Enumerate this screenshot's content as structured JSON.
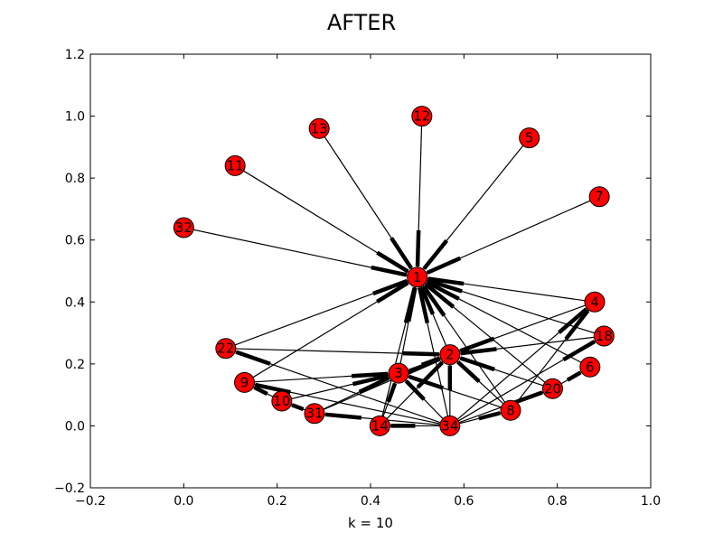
{
  "figure": {
    "title": "AFTER",
    "xlabel": "k = 10"
  },
  "chart_data": {
    "type": "scatter",
    "xlim": [
      -0.2,
      1.0
    ],
    "ylim": [
      -0.2,
      1.2
    ],
    "xticks": [
      -0.2,
      0.0,
      0.2,
      0.4,
      0.6,
      0.8,
      1.0
    ],
    "xtick_labels": [
      "−0.2",
      "0.0",
      "0.2",
      "0.4",
      "0.6",
      "0.8",
      "1.0"
    ],
    "yticks": [
      -0.2,
      0.0,
      0.2,
      0.4,
      0.6,
      0.8,
      1.0,
      1.2
    ],
    "ytick_labels": [
      "−0.2",
      "0.0",
      "0.2",
      "0.4",
      "0.6",
      "0.8",
      "1.0",
      "1.2"
    ],
    "grid": false,
    "node_color": "#ff0000",
    "edge_color": "#000000",
    "nodes": [
      {
        "id": "1",
        "x": 0.5,
        "y": 0.48
      },
      {
        "id": "2",
        "x": 0.57,
        "y": 0.23
      },
      {
        "id": "3",
        "x": 0.46,
        "y": 0.17
      },
      {
        "id": "4",
        "x": 0.88,
        "y": 0.4
      },
      {
        "id": "5",
        "x": 0.74,
        "y": 0.93
      },
      {
        "id": "6",
        "x": 0.87,
        "y": 0.19
      },
      {
        "id": "7",
        "x": 0.89,
        "y": 0.74
      },
      {
        "id": "8",
        "x": 0.7,
        "y": 0.05
      },
      {
        "id": "9",
        "x": 0.13,
        "y": 0.14
      },
      {
        "id": "10",
        "x": 0.21,
        "y": 0.08
      },
      {
        "id": "11",
        "x": 0.11,
        "y": 0.84
      },
      {
        "id": "12",
        "x": 0.51,
        "y": 1.0
      },
      {
        "id": "13",
        "x": 0.29,
        "y": 0.96
      },
      {
        "id": "14",
        "x": 0.42,
        "y": 0.0
      },
      {
        "id": "18",
        "x": 0.9,
        "y": 0.29
      },
      {
        "id": "20",
        "x": 0.79,
        "y": 0.12
      },
      {
        "id": "22",
        "x": 0.09,
        "y": 0.25
      },
      {
        "id": "31",
        "x": 0.28,
        "y": 0.04
      },
      {
        "id": "32",
        "x": 0.0,
        "y": 0.64
      },
      {
        "id": "34",
        "x": 0.57,
        "y": 0.0
      }
    ],
    "edges": [
      [
        "1",
        "32"
      ],
      [
        "1",
        "11"
      ],
      [
        "1",
        "13"
      ],
      [
        "1",
        "12"
      ],
      [
        "1",
        "5"
      ],
      [
        "1",
        "7"
      ],
      [
        "1",
        "4"
      ],
      [
        "1",
        "18"
      ],
      [
        "1",
        "6"
      ],
      [
        "1",
        "20"
      ],
      [
        "1",
        "8"
      ],
      [
        "1",
        "2"
      ],
      [
        "1",
        "3"
      ],
      [
        "1",
        "14"
      ],
      [
        "1",
        "22"
      ],
      [
        "1",
        "9"
      ],
      [
        "1",
        "34"
      ],
      [
        "2",
        "3"
      ],
      [
        "2",
        "4"
      ],
      [
        "2",
        "18"
      ],
      [
        "2",
        "8"
      ],
      [
        "2",
        "20"
      ],
      [
        "2",
        "14"
      ],
      [
        "2",
        "22"
      ],
      [
        "2",
        "34"
      ],
      [
        "2",
        "31"
      ],
      [
        "3",
        "9"
      ],
      [
        "3",
        "10"
      ],
      [
        "3",
        "14"
      ],
      [
        "3",
        "8"
      ],
      [
        "3",
        "34"
      ],
      [
        "3",
        "31"
      ],
      [
        "4",
        "8"
      ],
      [
        "4",
        "34"
      ],
      [
        "6",
        "20"
      ],
      [
        "18",
        "34"
      ],
      [
        "20",
        "34"
      ],
      [
        "9",
        "10"
      ],
      [
        "10",
        "31"
      ],
      [
        "9",
        "34"
      ],
      [
        "22",
        "34"
      ],
      [
        "14",
        "34"
      ],
      [
        "8",
        "34"
      ],
      [
        "31",
        "34"
      ]
    ]
  }
}
